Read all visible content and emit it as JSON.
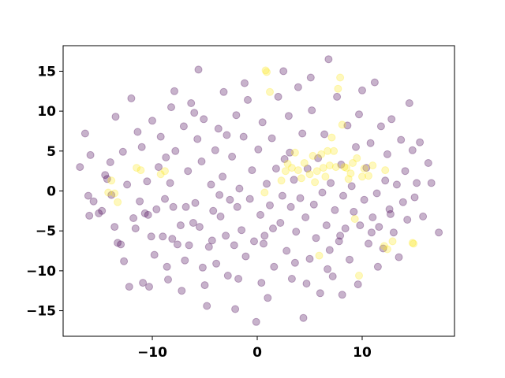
{
  "chart_data": {
    "type": "scatter",
    "title": "",
    "xlabel": "",
    "ylabel": "",
    "xlim": [
      -18.5,
      18.8
    ],
    "ylim": [
      -18.2,
      18.2
    ],
    "xticks": [
      -10,
      0,
      10
    ],
    "xtick_labels": [
      "−10",
      "0",
      "10"
    ],
    "yticks": [
      -15,
      -10,
      -5,
      0,
      5,
      10,
      15
    ],
    "ytick_labels": [
      "−15",
      "−10",
      "−5",
      "0",
      "5",
      "10",
      "15"
    ],
    "grid": false,
    "legend": "none",
    "marker_alpha": 0.3,
    "series": [
      {
        "color": "#440154",
        "points": [
          [
            -16.9,
            3.0
          ],
          [
            -16.4,
            7.2
          ],
          [
            -15.9,
            4.5
          ],
          [
            -16.1,
            -0.6
          ],
          [
            -16.0,
            -3.1
          ],
          [
            -15.6,
            -1.3
          ],
          [
            -15.1,
            -2.8
          ],
          [
            -14.8,
            -2.5
          ],
          [
            -14.5,
            2.0
          ],
          [
            -14.3,
            1.5
          ],
          [
            -14.0,
            3.6
          ],
          [
            -13.5,
            9.3
          ],
          [
            -13.6,
            -4.5
          ],
          [
            -13.3,
            -6.5
          ],
          [
            -13.0,
            -6.7
          ],
          [
            -12.8,
            4.9
          ],
          [
            -12.7,
            -8.8
          ],
          [
            -12.2,
            -12.0
          ],
          [
            -12.0,
            11.6
          ],
          [
            -11.8,
            -3.4
          ],
          [
            -11.6,
            -4.7
          ],
          [
            -11.2,
            -1.3
          ],
          [
            -10.9,
            -11.5
          ],
          [
            -10.7,
            -2.8
          ],
          [
            -10.4,
            -3.0
          ],
          [
            -10.3,
            -12.0
          ],
          [
            -10.1,
            -5.7
          ],
          [
            -10.0,
            8.8
          ],
          [
            -9.6,
            -2.3
          ],
          [
            -9.4,
            3.0
          ],
          [
            -9.2,
            6.8
          ],
          [
            -9.0,
            -5.7
          ],
          [
            -8.8,
            -1.0
          ],
          [
            -8.6,
            -9.5
          ],
          [
            -8.5,
            -11.1
          ],
          [
            -8.3,
            1.0
          ],
          [
            -8.2,
            10.5
          ],
          [
            -8.0,
            -2.0
          ],
          [
            -7.8,
            5.0
          ],
          [
            -7.6,
            -6.7
          ],
          [
            -7.3,
            -4.3
          ],
          [
            -7.2,
            -12.5
          ],
          [
            -7.0,
            8.1
          ],
          [
            -6.8,
            -2.0
          ],
          [
            -6.6,
            2.5
          ],
          [
            -6.5,
            -6.8
          ],
          [
            -6.3,
            11.0
          ],
          [
            -6.1,
            -4.0
          ],
          [
            -5.9,
            -1.5
          ],
          [
            -5.7,
            6.5
          ],
          [
            -5.5,
            -4.5
          ],
          [
            -5.3,
            3.7
          ],
          [
            -5.1,
            9.0
          ],
          [
            -5.0,
            -11.8
          ],
          [
            -4.8,
            -14.4
          ],
          [
            -4.6,
            -7.0
          ],
          [
            -4.4,
            0.8
          ],
          [
            -4.2,
            -2.5
          ],
          [
            -4.0,
            5.1
          ],
          [
            -3.9,
            -9.1
          ],
          [
            -3.7,
            7.8
          ],
          [
            -3.5,
            -3.2
          ],
          [
            -3.3,
            1.8
          ],
          [
            -3.2,
            12.4
          ],
          [
            -3.0,
            -5.6
          ],
          [
            -2.8,
            -10.6
          ],
          [
            -2.6,
            -1.1
          ],
          [
            -2.4,
            4.3
          ],
          [
            -2.2,
            -6.8
          ],
          [
            -2.0,
            9.5
          ],
          [
            -1.9,
            -2.0
          ],
          [
            -1.7,
            0.3
          ],
          [
            -1.5,
            -4.9
          ],
          [
            -1.3,
            6.8
          ],
          [
            -1.1,
            -8.2
          ],
          [
            -0.9,
            11.4
          ],
          [
            -0.7,
            -1.0
          ],
          [
            -0.5,
            2.6
          ],
          [
            -0.3,
            -6.3
          ],
          [
            -0.1,
            -16.4
          ],
          [
            0.1,
            5.2
          ],
          [
            0.3,
            -3.0
          ],
          [
            0.5,
            8.6
          ],
          [
            0.7,
            -5.6
          ],
          [
            0.9,
            0.9
          ],
          [
            1.0,
            -13.4
          ],
          [
            1.2,
            -1.8
          ],
          [
            1.4,
            6.6
          ],
          [
            1.6,
            -9.5
          ],
          [
            1.8,
            2.8
          ],
          [
            2.0,
            11.8
          ],
          [
            2.2,
            -4.0
          ],
          [
            2.4,
            -0.6
          ],
          [
            2.6,
            4.0
          ],
          [
            2.8,
            -7.5
          ],
          [
            3.0,
            9.4
          ],
          [
            3.2,
            -2.0
          ],
          [
            3.3,
            -11.0
          ],
          [
            3.5,
            1.4
          ],
          [
            3.7,
            -5.1
          ],
          [
            3.9,
            13.0
          ],
          [
            4.1,
            -0.9
          ],
          [
            4.3,
            7.2
          ],
          [
            4.4,
            -15.9
          ],
          [
            4.6,
            -3.3
          ],
          [
            4.8,
            2.8
          ],
          [
            5.0,
            -8.5
          ],
          [
            5.2,
            10.1
          ],
          [
            5.4,
            -1.7
          ],
          [
            5.6,
            -5.9
          ],
          [
            5.8,
            4.1
          ],
          [
            6.0,
            -12.8
          ],
          [
            6.2,
            -0.2
          ],
          [
            6.4,
            7.1
          ],
          [
            6.6,
            -4.3
          ],
          [
            6.8,
            16.5
          ],
          [
            7.0,
            1.0
          ],
          [
            7.2,
            -10.7
          ],
          [
            7.4,
            -2.4
          ],
          [
            7.6,
            11.8
          ],
          [
            7.8,
            -6.3
          ],
          [
            8.0,
            3.3
          ],
          [
            8.2,
            -0.6
          ],
          [
            8.4,
            -4.7
          ],
          [
            8.6,
            8.2
          ],
          [
            8.8,
            -8.6
          ],
          [
            9.0,
            0.6
          ],
          [
            9.2,
            -2.6
          ],
          [
            9.4,
            5.5
          ],
          [
            9.6,
            -11.7
          ],
          [
            9.8,
            -4.3
          ],
          [
            10.0,
            12.6
          ],
          [
            10.2,
            -1.1
          ],
          [
            10.4,
            2.9
          ],
          [
            10.6,
            -6.6
          ],
          [
            10.8,
            6.0
          ],
          [
            11.0,
            -3.3
          ],
          [
            11.2,
            13.6
          ],
          [
            11.4,
            -0.3
          ],
          [
            11.6,
            -4.5
          ],
          [
            11.8,
            8.1
          ],
          [
            12.0,
            -7.2
          ],
          [
            12.2,
            1.3
          ],
          [
            12.4,
            4.6
          ],
          [
            12.6,
            -2.3
          ],
          [
            12.8,
            9.0
          ],
          [
            13.0,
            -5.2
          ],
          [
            13.3,
            0.8
          ],
          [
            13.5,
            -8.3
          ],
          [
            13.7,
            6.4
          ],
          [
            13.9,
            -1.4
          ],
          [
            14.1,
            2.5
          ],
          [
            14.3,
            -3.6
          ],
          [
            14.5,
            11.0
          ],
          [
            14.8,
            5.1
          ],
          [
            15.0,
            -0.8
          ],
          [
            15.2,
            1.0
          ],
          [
            15.5,
            6.1
          ],
          [
            15.8,
            -3.2
          ],
          [
            16.3,
            3.5
          ],
          [
            16.6,
            1.0
          ],
          [
            17.3,
            -5.2
          ],
          [
            -12.4,
            0.8
          ],
          [
            -11.0,
            5.5
          ],
          [
            -9.8,
            -8.0
          ],
          [
            -7.9,
            12.5
          ],
          [
            -6.9,
            -8.7
          ],
          [
            -5.6,
            15.2
          ],
          [
            -4.3,
            -6.2
          ],
          [
            -2.1,
            -14.8
          ],
          [
            -1.2,
            13.5
          ],
          [
            0.4,
            -11.5
          ],
          [
            2.5,
            15.0
          ],
          [
            3.6,
            -9.0
          ],
          [
            5.1,
            14.2
          ],
          [
            6.7,
            -9.8
          ],
          [
            8.1,
            -13.0
          ],
          [
            9.7,
            9.6
          ],
          [
            11.5,
            -9.5
          ],
          [
            -8.7,
            4.2
          ],
          [
            -3.6,
            -0.5
          ],
          [
            1.5,
            -4.7
          ],
          [
            6.9,
            -7.4
          ],
          [
            -10.5,
            1.2
          ],
          [
            -6.0,
            9.8
          ],
          [
            -1.8,
            -11.0
          ],
          [
            3.1,
            4.8
          ],
          [
            10.9,
            -5.2
          ],
          [
            -13.9,
            -0.5
          ],
          [
            -11.4,
            7.4
          ],
          [
            -8.1,
            -6.0
          ],
          [
            -5.2,
            -9.6
          ],
          [
            -2.9,
            7.0
          ],
          [
            0.6,
            -6.6
          ],
          [
            4.7,
            -11.6
          ],
          [
            7.9,
            -5.6
          ],
          [
            12.7,
            -2.9
          ]
        ]
      },
      {
        "color": "#fde725",
        "points": [
          [
            -14.2,
            -0.2
          ],
          [
            -13.9,
            1.3
          ],
          [
            -13.6,
            -0.3
          ],
          [
            -13.3,
            -1.4
          ],
          [
            -11.5,
            2.9
          ],
          [
            -11.1,
            2.6
          ],
          [
            -9.2,
            2.1
          ],
          [
            -8.8,
            2.5
          ],
          [
            0.7,
            -0.2
          ],
          [
            0.8,
            15.1
          ],
          [
            0.9,
            14.9
          ],
          [
            1.2,
            12.4
          ],
          [
            2.3,
            1.3
          ],
          [
            2.7,
            2.5
          ],
          [
            2.9,
            3.4
          ],
          [
            3.3,
            2.9
          ],
          [
            3.6,
            4.8
          ],
          [
            3.9,
            2.6
          ],
          [
            4.2,
            1.6
          ],
          [
            4.5,
            3.5
          ],
          [
            5.0,
            2.1
          ],
          [
            5.3,
            4.4
          ],
          [
            5.5,
            1.1
          ],
          [
            5.7,
            2.5
          ],
          [
            5.9,
            -8.1
          ],
          [
            6.1,
            4.6
          ],
          [
            6.3,
            2.9
          ],
          [
            6.5,
            1.8
          ],
          [
            6.7,
            5.0
          ],
          [
            6.9,
            3.2
          ],
          [
            7.1,
            6.7
          ],
          [
            7.3,
            5.0
          ],
          [
            7.5,
            3.0
          ],
          [
            7.7,
            12.8
          ],
          [
            7.9,
            14.2
          ],
          [
            8.1,
            8.3
          ],
          [
            8.3,
            3.0
          ],
          [
            8.5,
            2.9
          ],
          [
            8.7,
            1.5
          ],
          [
            8.9,
            2.2
          ],
          [
            9.1,
            3.5
          ],
          [
            9.3,
            -3.5
          ],
          [
            9.5,
            4.1
          ],
          [
            9.7,
            -10.6
          ],
          [
            10.0,
            1.8
          ],
          [
            10.2,
            2.8
          ],
          [
            10.6,
            1.9
          ],
          [
            11.0,
            3.2
          ],
          [
            12.1,
            -6.9
          ],
          [
            12.2,
            2.6
          ],
          [
            12.4,
            -7.3
          ],
          [
            12.9,
            -6.3
          ],
          [
            14.8,
            -6.5
          ],
          [
            14.9,
            -6.6
          ]
        ]
      }
    ]
  }
}
